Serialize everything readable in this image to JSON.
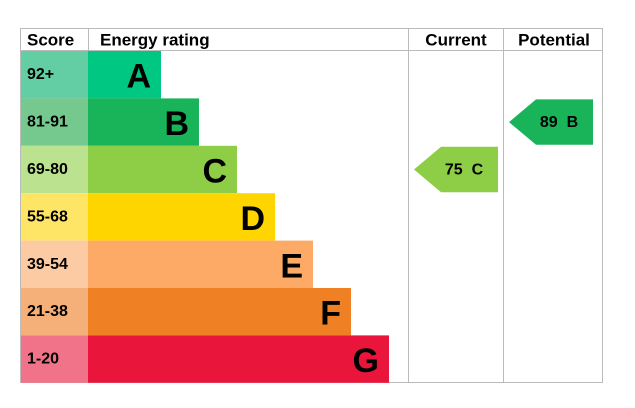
{
  "header": {
    "score": "Score",
    "energy_rating": "Energy rating",
    "current": "Current",
    "potential": "Potential"
  },
  "bands": [
    {
      "score": "92+",
      "letter": "A",
      "color": "#00c781",
      "score_color": "#63cda3"
    },
    {
      "score": "81-91",
      "letter": "B",
      "color": "#19b459",
      "score_color": "#75c98e"
    },
    {
      "score": "69-80",
      "letter": "C",
      "color": "#8dce46",
      "score_color": "#bbe28e"
    },
    {
      "score": "55-68",
      "letter": "D",
      "color": "#ffd500",
      "score_color": "#ffe566"
    },
    {
      "score": "39-54",
      "letter": "E",
      "color": "#fcaa65",
      "score_color": "#fdcba3"
    },
    {
      "score": "21-38",
      "letter": "F",
      "color": "#ef8023",
      "score_color": "#f5b07a"
    },
    {
      "score": "1-20",
      "letter": "G",
      "color": "#e9153b",
      "score_color": "#f17389"
    }
  ],
  "current": {
    "value": 75,
    "letter": "C"
  },
  "potential": {
    "value": 89,
    "letter": "B"
  }
}
